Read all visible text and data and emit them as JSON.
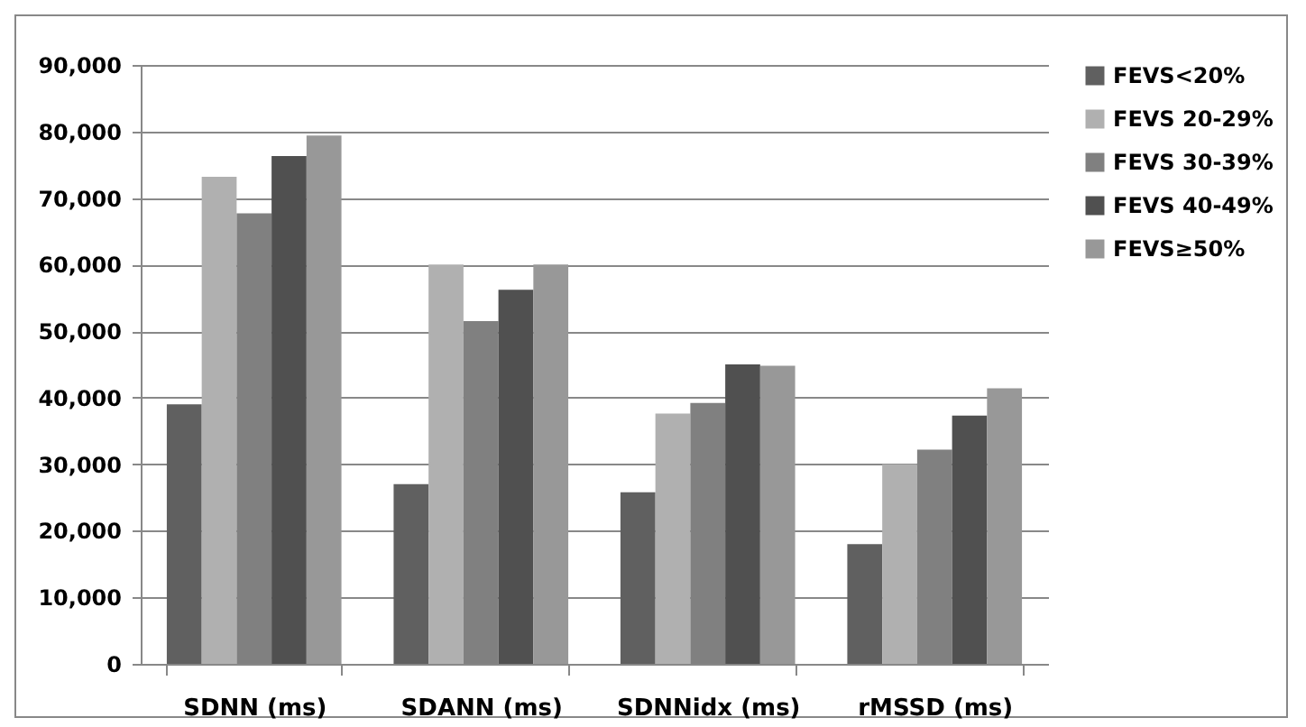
{
  "chart_data": {
    "type": "bar",
    "categories": [
      "SDNN (ms)",
      "SDANN (ms)",
      "SDNNidx (ms)",
      "rMSSD (ms)"
    ],
    "series": [
      {
        "name": "FEVS<20%",
        "color": "#606060",
        "values": [
          39000,
          27000,
          25800,
          18000
        ]
      },
      {
        "name": "FEVS 20-29%",
        "color": "#b0b0b0",
        "values": [
          73200,
          60000,
          37600,
          30000
        ]
      },
      {
        "name": "FEVS 30-39%",
        "color": "#808080",
        "values": [
          67700,
          51500,
          39200,
          32200
        ]
      },
      {
        "name": "FEVS 40-49%",
        "color": "#505050",
        "values": [
          76300,
          56200,
          45000,
          37300
        ]
      },
      {
        "name": "FEVS≥50%",
        "color": "#989898",
        "values": [
          79400,
          60000,
          44800,
          41400
        ]
      }
    ],
    "ylim": [
      0,
      90000
    ],
    "yticks": [
      {
        "value": 0,
        "label": "0"
      },
      {
        "value": 10000,
        "label": "10,000"
      },
      {
        "value": 20000,
        "label": "20,000"
      },
      {
        "value": 30000,
        "label": "30,000"
      },
      {
        "value": 40000,
        "label": "40,000"
      },
      {
        "value": 50000,
        "label": "50,000"
      },
      {
        "value": 60000,
        "label": "60,000"
      },
      {
        "value": 70000,
        "label": "70,000"
      },
      {
        "value": 80000,
        "label": "80,000"
      },
      {
        "value": 90000,
        "label": "90,000"
      }
    ],
    "grid": "y",
    "legend": "right"
  }
}
